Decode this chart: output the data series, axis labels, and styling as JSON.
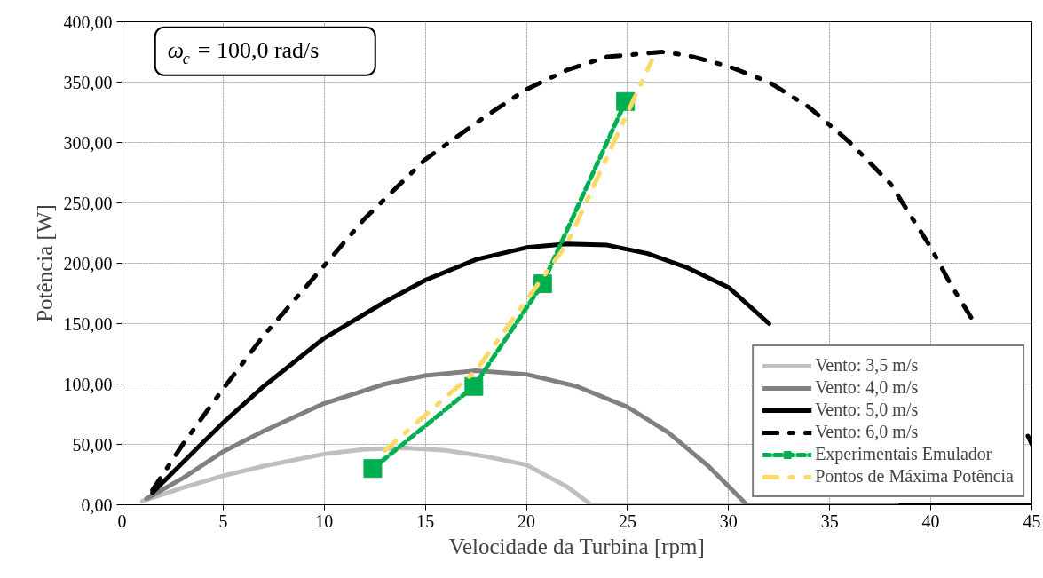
{
  "chart_data": {
    "type": "line",
    "xlabel": "Velocidade da Turbina [rpm]",
    "ylabel": "Potência [W]",
    "xlim": [
      0,
      45
    ],
    "xticks": [
      0,
      5,
      10,
      15,
      20,
      25,
      30,
      35,
      40,
      45
    ],
    "ylim": [
      0,
      400
    ],
    "yticks": [
      {
        "value": 0,
        "label": "0,00"
      },
      {
        "value": 50,
        "label": "50,00"
      },
      {
        "value": 100,
        "label": "100,00"
      },
      {
        "value": 150,
        "label": "150,00"
      },
      {
        "value": 200,
        "label": "200,00"
      },
      {
        "value": 250,
        "label": "250,00"
      },
      {
        "value": 300,
        "label": "300,00"
      },
      {
        "value": 350,
        "label": "350,00"
      },
      {
        "value": 400,
        "label": "400,00"
      }
    ],
    "grid": true,
    "legend": "bottom right",
    "annotations": [
      "ω$_{c}$ = 100,0 rad/s"
    ],
    "series": [
      {
        "name": "Vento: 3,5 m/s",
        "color": "#bfbfbf",
        "line_style": "solid",
        "x": [
          1,
          3,
          5,
          7,
          10,
          12,
          14,
          16,
          18,
          20,
          22,
          23.2,
          31
        ],
        "values": [
          3,
          14,
          24,
          32,
          42,
          46,
          47,
          45,
          40,
          33,
          15,
          0,
          0
        ]
      },
      {
        "name": "Vento: 4,0 m/s",
        "color": "#808080",
        "line_style": "solid",
        "x": [
          1.2,
          3,
          5,
          7,
          10,
          13,
          15,
          17.5,
          20,
          22.5,
          25,
          27,
          29,
          30.9,
          38.5
        ],
        "values": [
          5,
          22,
          44,
          61,
          84,
          100,
          107,
          111,
          108,
          98,
          81,
          60,
          32,
          0,
          0
        ]
      },
      {
        "name": "Vento: 5,0 m/s",
        "color": "#000000",
        "line_style": "solid",
        "x": [
          1.5,
          3,
          5,
          7,
          10,
          13,
          15,
          17.5,
          20,
          22,
          24,
          26,
          28,
          30,
          32,
          34,
          36,
          38.5,
          45
        ],
        "values": [
          10,
          35,
          68,
          98,
          138,
          168,
          186,
          203,
          213,
          216,
          215,
          208,
          196,
          180,
          150,
          null,
          null,
          0,
          0
        ]
      },
      {
        "name": "Vento: 6,0 m/s",
        "color": "#000000",
        "line_style": "dashdot",
        "x": [
          1.5,
          3,
          5,
          7,
          10,
          12,
          15,
          18,
          20,
          22,
          24,
          26.7,
          28,
          30,
          32,
          34,
          36,
          38,
          40,
          41,
          42,
          43,
          44.8,
          45
        ],
        "values": [
          12,
          50,
          96,
          140,
          198,
          237,
          286,
          322,
          344,
          360,
          371,
          375,
          372,
          363,
          350,
          329,
          300,
          266,
          213,
          182,
          155,
          null,
          57,
          50
        ]
      },
      {
        "name": "Experimentais Emulador",
        "color": "#00b050",
        "line_style": "dashed",
        "marker": "square",
        "x": [
          12.4,
          17.4,
          20.8,
          24.9
        ],
        "values": [
          30,
          98,
          183,
          334
        ]
      },
      {
        "name": "Pontos de Máxima Potência",
        "color": "#ffd966",
        "line_style": "dashdot",
        "x": [
          13,
          17.5,
          22,
          26.2
        ],
        "values": [
          45,
          111,
          216,
          368
        ]
      }
    ]
  }
}
